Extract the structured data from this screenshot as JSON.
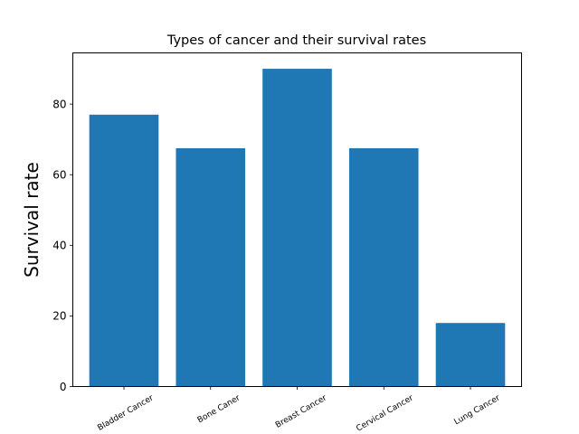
{
  "chart_data": {
    "type": "bar",
    "title": "Types of cancer and their survival rates",
    "xlabel": "",
    "ylabel": "Survival rate",
    "categories": [
      "Bladder Cancer",
      "Bone Caner",
      "Breast Cancer",
      "Cervical Cancer",
      "Lung Cancer"
    ],
    "values": [
      77,
      67.5,
      90,
      67.5,
      18
    ],
    "ylim": [
      0,
      94.5
    ],
    "yticks": [
      0,
      20,
      40,
      60,
      80
    ],
    "grid": false,
    "bar_color": "#1f77b4"
  }
}
